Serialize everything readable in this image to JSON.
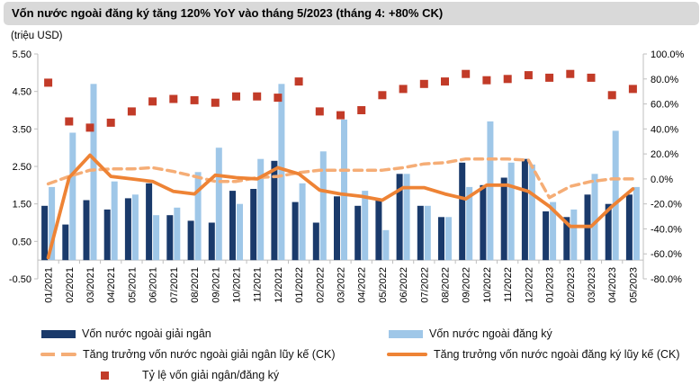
{
  "title": "Vốn nước ngoài đăng ký tăng 120% YoY vào tháng 5/2023 (tháng 4: +80% CK)",
  "colors": {
    "navy": "#1a3a6b",
    "light_blue": "#9fc7e8",
    "orange": "#ee8335",
    "light_orange": "#f5ad76",
    "red": "#c23b28",
    "title_bg": "#d9d9d9",
    "axis": "#bfbfbf",
    "text": "#000000"
  },
  "chart_data": {
    "type": "combo",
    "legend_position": "bottom",
    "categories": [
      "01/2021",
      "02/2021",
      "03/2021",
      "04/2021",
      "05/2021",
      "06/2021",
      "07/2021",
      "08/2021",
      "09/2021",
      "10/2021",
      "11/2021",
      "12/2021",
      "01/2022",
      "02/2022",
      "03/2022",
      "04/2022",
      "05/2022",
      "06/2022",
      "07/2022",
      "08/2022",
      "09/2022",
      "10/2022",
      "11/2022",
      "12/2022",
      "01/2023",
      "02/2023",
      "03/2023",
      "04/2023",
      "05/2023"
    ],
    "left_axis": {
      "label": "(triệu USD)",
      "min": -0.5,
      "max": 5.5,
      "ticks": [
        {
          "label": "5.50",
          "value": 5.5
        },
        {
          "label": "4.50",
          "value": 4.5
        },
        {
          "label": "3.50",
          "value": 3.5
        },
        {
          "label": "2.50",
          "value": 2.5
        },
        {
          "label": "1.50",
          "value": 1.5
        },
        {
          "label": "0.50",
          "value": 0.5
        },
        {
          "label": "-0.50",
          "value": -0.5
        }
      ]
    },
    "right_axis": {
      "min": -80,
      "max": 100,
      "ticks": [
        {
          "label": "100.0%",
          "value": 100
        },
        {
          "label": "80.0%",
          "value": 80
        },
        {
          "label": "60.0%",
          "value": 60
        },
        {
          "label": "40.0%",
          "value": 40
        },
        {
          "label": "20.0%",
          "value": 20
        },
        {
          "label": "0.0%",
          "value": 0
        },
        {
          "label": "-20.0%",
          "value": -20
        },
        {
          "label": "-40.0%",
          "value": -40
        },
        {
          "label": "-60.0%",
          "value": -60
        },
        {
          "label": "-80.0%",
          "value": -80
        }
      ]
    },
    "series": [
      {
        "name": "Vốn nước ngoài giải ngân",
        "type": "bar",
        "axis": "left",
        "color_key": "navy",
        "values": [
          1.45,
          0.95,
          1.6,
          1.35,
          1.65,
          2.05,
          1.2,
          1.05,
          1.0,
          1.85,
          1.9,
          2.65,
          1.55,
          1.0,
          1.7,
          1.45,
          1.6,
          2.3,
          1.45,
          1.15,
          2.6,
          2.0,
          2.2,
          2.7,
          1.3,
          1.15,
          1.75,
          1.5,
          1.75
        ]
      },
      {
        "name": "Vốn nước ngoài đăng ký",
        "type": "bar",
        "axis": "left",
        "color_key": "light_blue",
        "values": [
          1.95,
          3.4,
          4.7,
          2.1,
          1.75,
          1.2,
          1.4,
          2.35,
          3.0,
          1.5,
          2.7,
          4.7,
          2.05,
          2.9,
          3.75,
          1.85,
          0.8,
          2.3,
          1.45,
          1.15,
          1.95,
          3.7,
          2.6,
          2.55,
          1.55,
          1.35,
          2.3,
          3.45,
          1.95
        ]
      },
      {
        "name": "Tăng trưởng vốn nước ngoài giải ngân lũy kế (CK)",
        "type": "line-dashed",
        "axis": "right",
        "color_key": "light_orange",
        "values": [
          -4,
          2,
          7,
          8,
          8,
          9,
          6,
          2,
          -2,
          -2,
          1,
          2,
          5,
          7,
          7,
          7,
          7,
          9,
          12,
          13,
          16,
          16,
          16,
          15,
          -15,
          -6,
          -2,
          0,
          0
        ]
      },
      {
        "name": "Tăng trưởng vốn nước ngoài đăng ký lũy kế (CK)",
        "type": "line",
        "axis": "right",
        "color_key": "orange",
        "values": [
          -63,
          1,
          19,
          2,
          0,
          -2,
          -10,
          -12,
          3,
          1,
          0,
          9,
          4,
          -9,
          -12,
          -14,
          -17,
          -7,
          -7,
          -12,
          -16,
          -5,
          -5,
          -10,
          -22,
          -38,
          -38,
          -22,
          -8
        ]
      },
      {
        "name": "Tỷ lệ vốn giải ngân/đăng ký",
        "type": "square-marker",
        "axis": "right",
        "color_key": "red",
        "values": [
          77,
          46,
          41,
          45,
          54,
          62,
          64,
          63,
          61,
          66,
          66,
          65,
          78,
          54,
          51,
          55,
          67,
          72,
          76,
          78,
          84,
          79,
          80,
          83,
          81,
          84,
          81,
          67,
          72
        ]
      }
    ]
  }
}
